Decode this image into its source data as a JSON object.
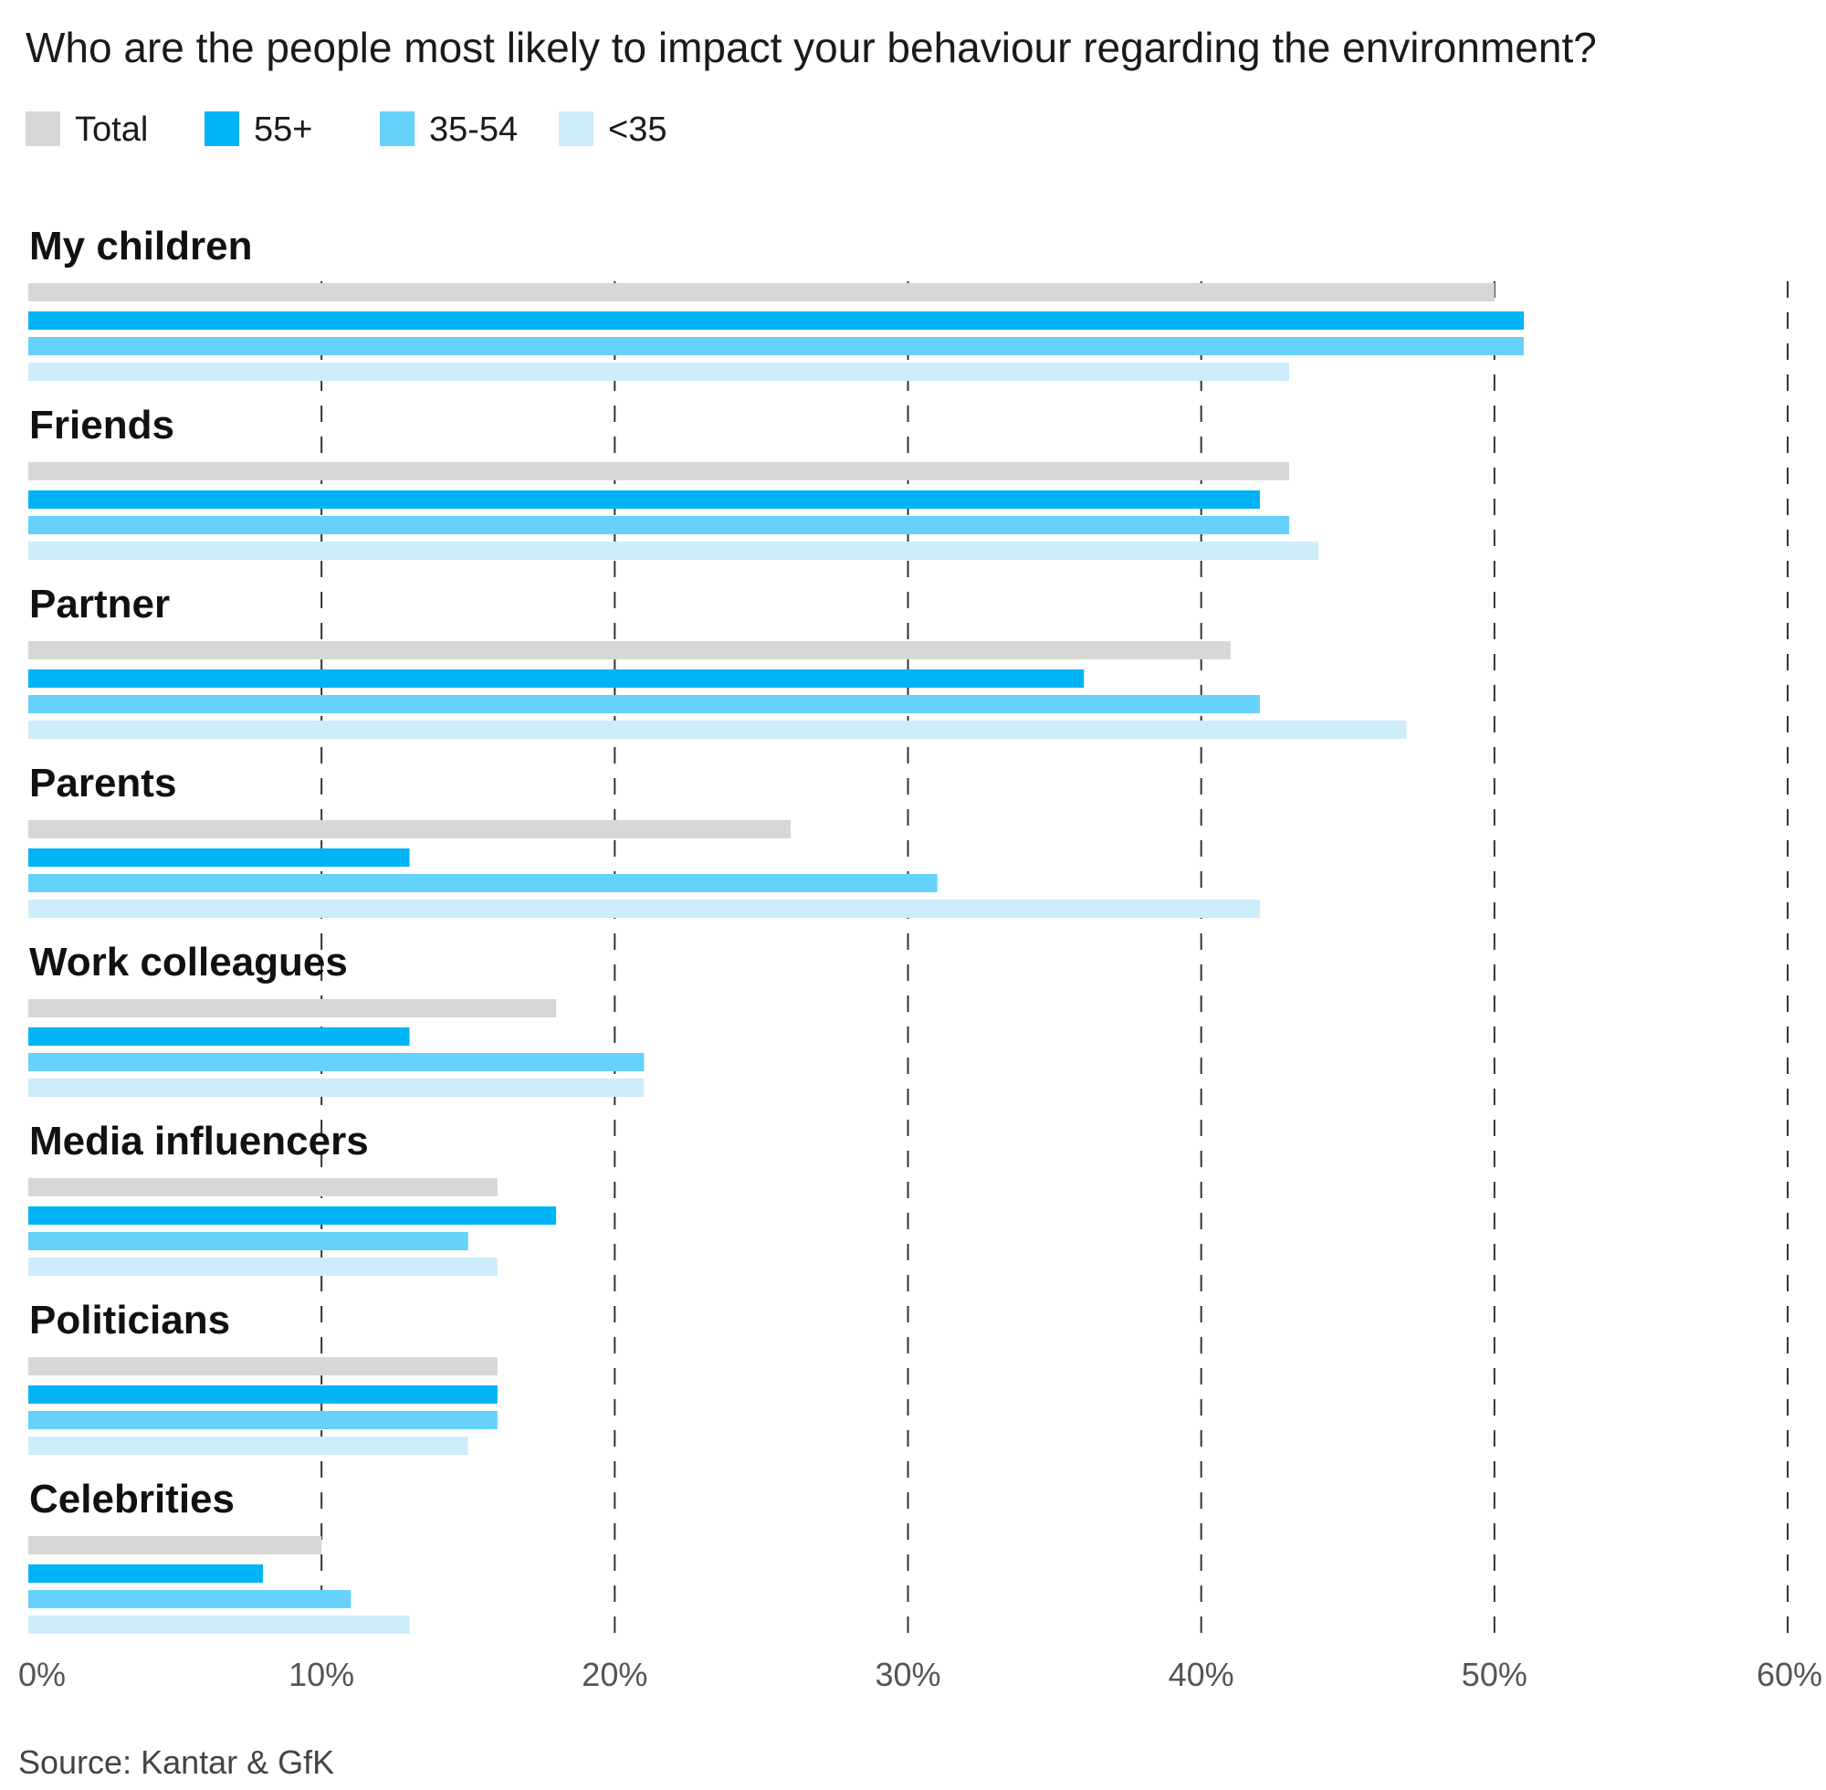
{
  "chart_data": {
    "type": "bar",
    "orientation": "horizontal",
    "title": "Who are the people most likely to impact your behaviour regarding the environment?",
    "source": "Source: Kantar & GfK",
    "categories": [
      "My children",
      "Friends",
      "Partner",
      "Parents",
      "Work colleagues",
      "Media influencers",
      "Politicians",
      "Celebrities"
    ],
    "series": [
      {
        "name": "Total",
        "color": "#d7d7d5",
        "values": [
          50,
          43,
          41,
          26,
          18,
          16,
          16,
          10
        ]
      },
      {
        "name": "55+",
        "color": "#00b3f5",
        "values": [
          51,
          42,
          36,
          13,
          13,
          18,
          16,
          8
        ]
      },
      {
        "name": "35-54",
        "color": "#66d1fa",
        "values": [
          51,
          43,
          42,
          31,
          21,
          15,
          16,
          11
        ]
      },
      {
        "name": "<35",
        "color": "#cdedfb",
        "values": [
          43,
          44,
          47,
          42,
          21,
          16,
          15,
          13
        ]
      }
    ],
    "xlim": [
      0,
      60
    ],
    "xticks": [
      "0%",
      "10%",
      "20%",
      "30%",
      "40%",
      "50%",
      "60%"
    ],
    "grid": true,
    "legend_position": "top-left"
  }
}
